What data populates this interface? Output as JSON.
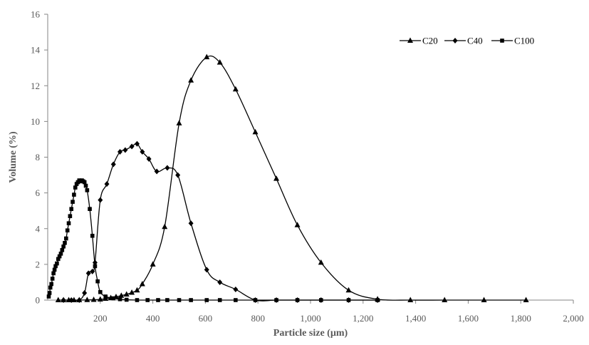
{
  "chart_data": {
    "type": "line",
    "xlabel": "Particle size (µm)",
    "ylabel": "Volume (%)",
    "xlim": [
      0,
      2000
    ],
    "ylim": [
      0,
      16
    ],
    "x_ticks": [
      "200",
      "400",
      "600",
      "800",
      "1,000",
      "1,200",
      "1,400",
      "1,600",
      "1,800",
      "2,000"
    ],
    "x_tick_values": [
      200,
      400,
      600,
      800,
      1000,
      1200,
      1400,
      1600,
      1800,
      2000
    ],
    "y_ticks": [
      "0",
      "2",
      "4",
      "6",
      "8",
      "10",
      "12",
      "14",
      "16"
    ],
    "y_tick_values": [
      0,
      2,
      4,
      6,
      8,
      10,
      12,
      14,
      16
    ],
    "grid": false,
    "legend_position": "top-right",
    "series": [
      {
        "name": "C20",
        "marker": "triangle",
        "x": [
          40,
          60,
          80,
          100,
          120,
          150,
          175,
          200,
          220,
          240,
          260,
          280,
          300,
          320,
          340,
          360,
          400,
          445,
          500,
          545,
          605,
          655,
          715,
          790,
          870,
          950,
          1040,
          1145,
          1255,
          1380,
          1510,
          1660,
          1820
        ],
        "y": [
          0.0,
          0.0,
          0.0,
          0.0,
          0.0,
          0.01,
          0.02,
          0.04,
          0.08,
          0.12,
          0.18,
          0.25,
          0.32,
          0.42,
          0.55,
          0.9,
          2.0,
          4.1,
          9.9,
          12.3,
          13.6,
          13.3,
          11.8,
          9.4,
          6.8,
          4.2,
          2.1,
          0.55,
          0.05,
          0.0,
          0.0,
          0.0,
          0.0
        ]
      },
      {
        "name": "C40",
        "marker": "diamond",
        "x": [
          60,
          90,
          120,
          140,
          155,
          170,
          180,
          200,
          225,
          250,
          275,
          295,
          320,
          340,
          360,
          385,
          415,
          455,
          495,
          545,
          605,
          655,
          715,
          790,
          870,
          950,
          1040,
          1145,
          1255
        ],
        "y": [
          0.0,
          0.0,
          0.0,
          0.4,
          1.5,
          1.6,
          2.1,
          5.6,
          6.5,
          7.6,
          8.3,
          8.4,
          8.6,
          8.75,
          8.3,
          7.9,
          7.2,
          7.4,
          7.0,
          4.3,
          1.7,
          1.0,
          0.6,
          0.0,
          0.0,
          0.0,
          0.0,
          0.0,
          0.0
        ]
      },
      {
        "name": "C100",
        "marker": "square",
        "x": [
          4,
          7,
          10,
          14,
          18,
          22,
          26,
          30,
          35,
          40,
          45,
          50,
          55,
          60,
          65,
          70,
          75,
          80,
          85,
          90,
          95,
          100,
          105,
          110,
          115,
          120,
          125,
          130,
          135,
          140,
          145,
          150,
          160,
          170,
          180,
          190,
          200,
          220,
          250,
          275,
          300,
          340,
          380,
          420,
          455,
          500,
          545,
          605,
          655,
          715,
          790,
          870,
          950,
          1040,
          1145,
          1255
        ],
        "y": [
          0.2,
          0.4,
          0.7,
          0.9,
          1.2,
          1.5,
          1.7,
          1.9,
          2.05,
          2.3,
          2.45,
          2.6,
          2.8,
          3.0,
          3.2,
          3.45,
          3.9,
          4.3,
          4.7,
          5.1,
          5.5,
          5.9,
          6.3,
          6.5,
          6.6,
          6.7,
          6.65,
          6.7,
          6.65,
          6.6,
          6.4,
          6.15,
          5.1,
          3.6,
          1.9,
          1.05,
          0.45,
          0.2,
          0.1,
          0.05,
          0.02,
          0.0,
          0.0,
          0.0,
          0.0,
          0.0,
          0.0,
          0.0,
          0.0,
          0.0,
          0.0,
          0.0,
          0.0,
          0.0,
          0.0,
          0.0
        ]
      }
    ]
  }
}
